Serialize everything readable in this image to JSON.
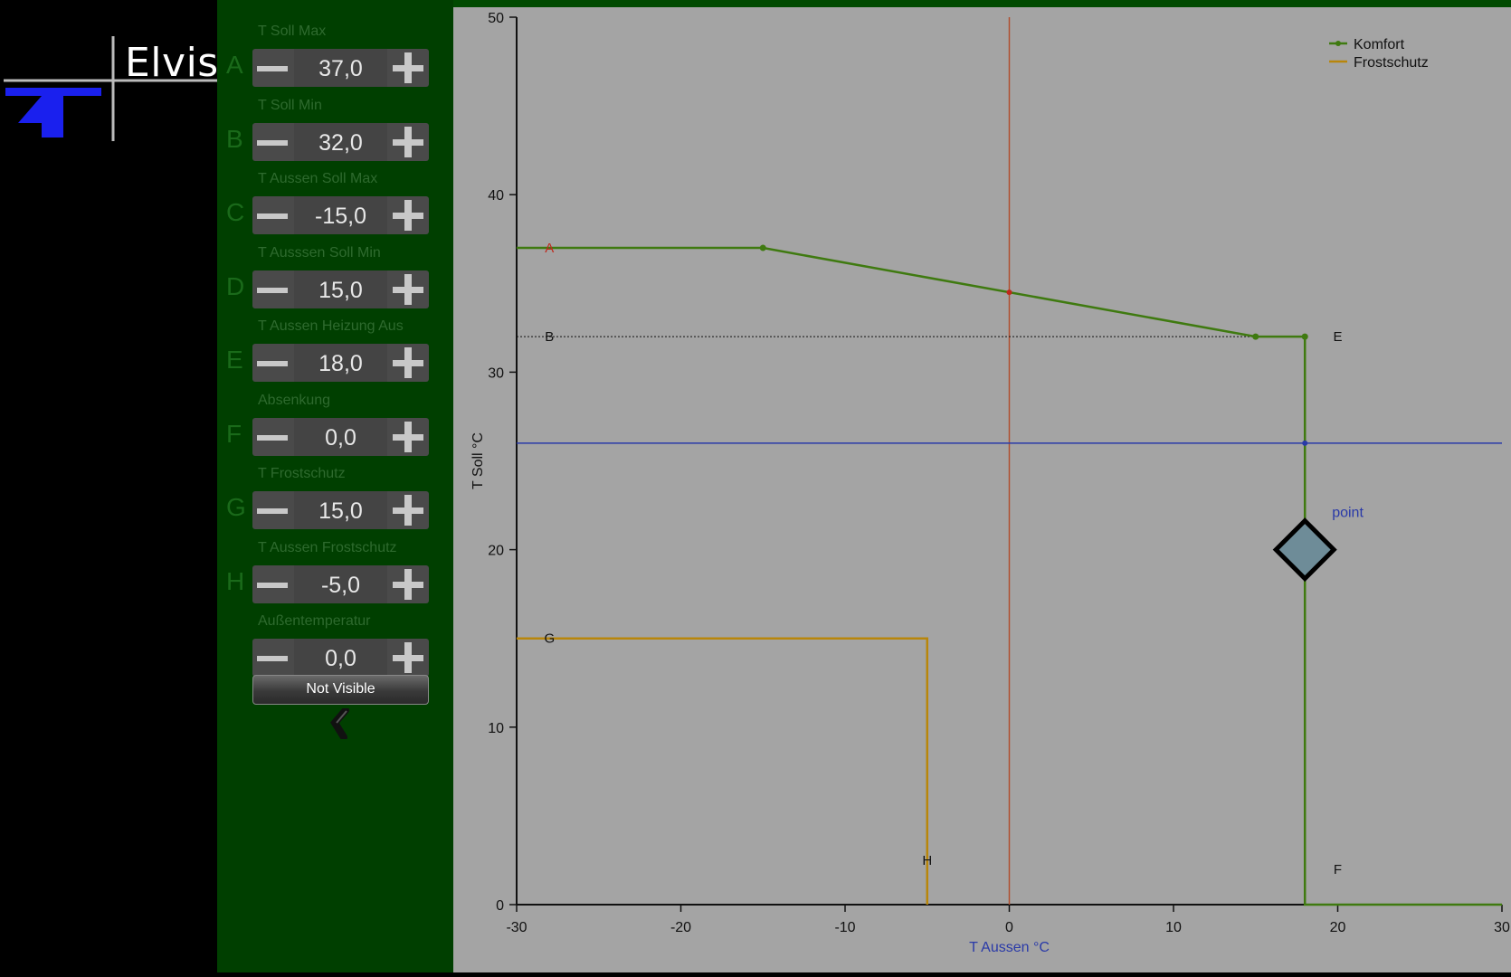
{
  "logo": {
    "text": "Elvis"
  },
  "parameters": [
    {
      "label": "T Soll Max",
      "letter": "A",
      "value": "37,0"
    },
    {
      "label": "T Soll Min",
      "letter": "B",
      "value": "32,0"
    },
    {
      "label": "T Aussen Soll Max",
      "letter": "C",
      "value": "-15,0"
    },
    {
      "label": "T Ausssen Soll Min",
      "letter": "D",
      "value": "15,0"
    },
    {
      "label": "T Aussen Heizung Aus",
      "letter": "E",
      "value": "18,0"
    },
    {
      "label": "Absenkung",
      "letter": "F",
      "value": "0,0"
    },
    {
      "label": "T Frostschutz",
      "letter": "G",
      "value": "15,0"
    },
    {
      "label": "T Aussen Frostschutz",
      "letter": "H",
      "value": "-5,0"
    },
    {
      "label": "Außentemperatur",
      "letter": "",
      "value": "0,0"
    }
  ],
  "not_visible_button": "Not Visible",
  "colors": {
    "panel_green": "#003f00",
    "komfort": "#3f7a10",
    "frostschutz": "#b8860b",
    "vertical_line": "#b05030",
    "blue_line": "#2a3aa8",
    "chart_bg": "#a4a4a4",
    "marker_fill": "#6e8c98"
  },
  "chart_data": {
    "type": "line",
    "xlabel": "T Aussen °C",
    "ylabel": "T Soll °C",
    "xlim": [
      -30,
      30
    ],
    "ylim": [
      0,
      50
    ],
    "xticks": [
      -30,
      -20,
      -10,
      0,
      10,
      20,
      30
    ],
    "yticks": [
      0,
      10,
      20,
      30,
      40,
      50
    ],
    "grid": false,
    "legend_position": "top-right",
    "series": [
      {
        "name": "Komfort",
        "markers": true,
        "x": [
          -30,
          -15,
          15,
          18,
          18,
          30
        ],
        "y": [
          37,
          37,
          32,
          32,
          0,
          0
        ]
      },
      {
        "name": "Frostschutz",
        "markers": false,
        "x": [
          -30,
          -5,
          -5
        ],
        "y": [
          15,
          15,
          0
        ]
      }
    ],
    "reference_lines": {
      "vertical_x": 0,
      "horizontal_y": 26,
      "dotted_y": 32
    },
    "intersection_points": [
      {
        "x": 0,
        "y": 34.5
      },
      {
        "x": 18,
        "y": 26
      }
    ],
    "annotations": [
      {
        "text": "A",
        "x": -28,
        "y": 37,
        "color": "#c0281c"
      },
      {
        "text": "B",
        "x": -28,
        "y": 32,
        "color": "#111"
      },
      {
        "text": "E",
        "x": 20,
        "y": 32,
        "color": "#111"
      },
      {
        "text": "F",
        "x": 20,
        "y": 2,
        "color": "#111"
      },
      {
        "text": "G",
        "x": -28,
        "y": 15,
        "color": "#111"
      },
      {
        "text": "H",
        "x": -5,
        "y": 2.5,
        "color": "#111"
      }
    ],
    "marker": {
      "label": "point",
      "x": 18,
      "y": 20
    }
  }
}
